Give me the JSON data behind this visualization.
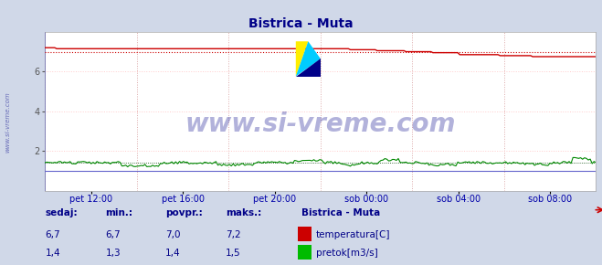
{
  "title": "Bistrica - Muta",
  "title_color": "#000088",
  "bg_color": "#d0d8e8",
  "plot_bg_color": "#ffffff",
  "grid_color": "#ffaaaa",
  "grid_h_color": "#ffcccc",
  "grid_v_color": "#ddaaaa",
  "grid_style": ":",
  "x_tick_labels": [
    "pet 12:00",
    "pet 16:00",
    "pet 20:00",
    "sob 00:00",
    "sob 04:00",
    "sob 08:00"
  ],
  "ylim": [
    0,
    8
  ],
  "yticks": [
    2,
    4,
    6
  ],
  "temp_color": "#cc0000",
  "flow_color": "#008800",
  "flow_dot_color": "#004400",
  "temp_avg_color": "#cc0000",
  "blue_line_color": "#0000cc",
  "watermark_text": "www.si-vreme.com",
  "watermark_color": "#000088",
  "watermark_alpha": 0.3,
  "sidebar_text": "www.si-vreme.com",
  "sidebar_color": "#000088",
  "legend_title": "Bistrica - Muta",
  "legend_entries": [
    "temperatura[C]",
    "pretok[m3/s]"
  ],
  "legend_colors": [
    "#cc0000",
    "#00bb00"
  ],
  "stats_headers": [
    "sedaj:",
    "min.:",
    "povpr.:",
    "maks.:"
  ],
  "stats_temp": [
    "6,7",
    "6,7",
    "7,0",
    "7,2"
  ],
  "stats_flow": [
    "1,4",
    "1,3",
    "1,4",
    "1,5"
  ],
  "stats_color": "#000088",
  "n_points": 288,
  "temp_avg_val": 7.0,
  "flow_avg_val": 1.4
}
